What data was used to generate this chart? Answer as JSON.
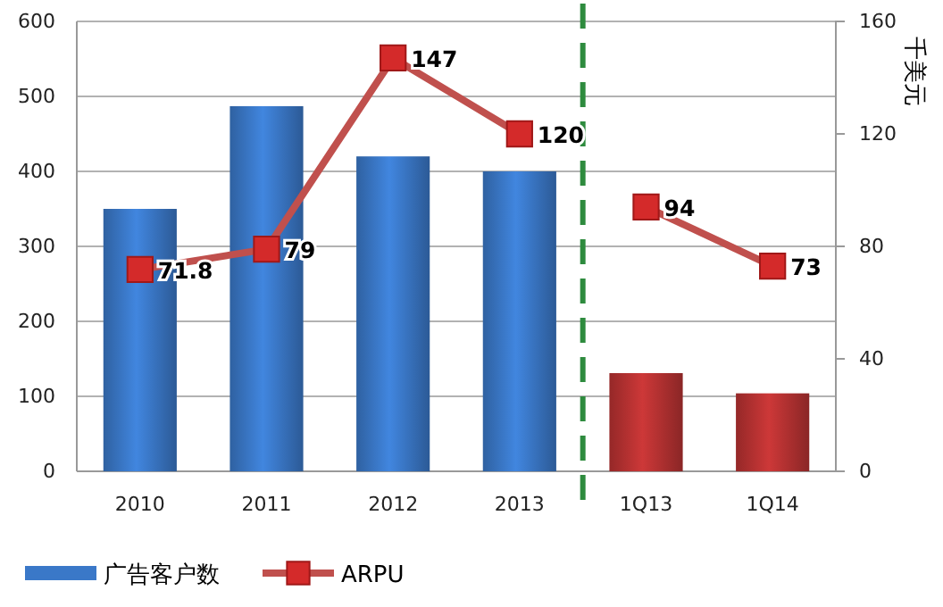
{
  "chart_data": {
    "type": "bar",
    "categories": [
      "2010",
      "2011",
      "2012",
      "2013",
      "1Q13",
      "1Q14"
    ],
    "series": [
      {
        "name": "广告客户数",
        "color": "#3a78c8",
        "colors": [
          "#3a78c8",
          "#3a78c8",
          "#3a78c8",
          "#3a78c8",
          "#b83232",
          "#b83232"
        ],
        "values": [
          350,
          487,
          420,
          400,
          131,
          104
        ]
      },
      {
        "name": "ARPU",
        "type": "line",
        "axis": "y2",
        "color": "#c0504d",
        "marker": "square",
        "value_labels": [
          "71.8",
          "79",
          "147",
          "120",
          null,
          null
        ],
        "values": [
          71.8,
          79,
          147,
          120,
          null,
          null
        ]
      },
      {
        "type": "line",
        "axis": "y2",
        "color": "#c0504d",
        "marker": "square",
        "value_labels": [
          null,
          null,
          null,
          null,
          "94",
          "73"
        ],
        "values": [
          null,
          null,
          null,
          null,
          94,
          73
        ]
      }
    ],
    "ylim": [
      0,
      600
    ],
    "yticks": [
      0,
      100,
      200,
      300,
      400,
      500,
      600
    ],
    "y2lim": [
      0,
      160
    ],
    "y2ticks": [
      0,
      40,
      80,
      120,
      160
    ],
    "y2label": "千美元",
    "grid": "y",
    "legend": "bottom"
  }
}
